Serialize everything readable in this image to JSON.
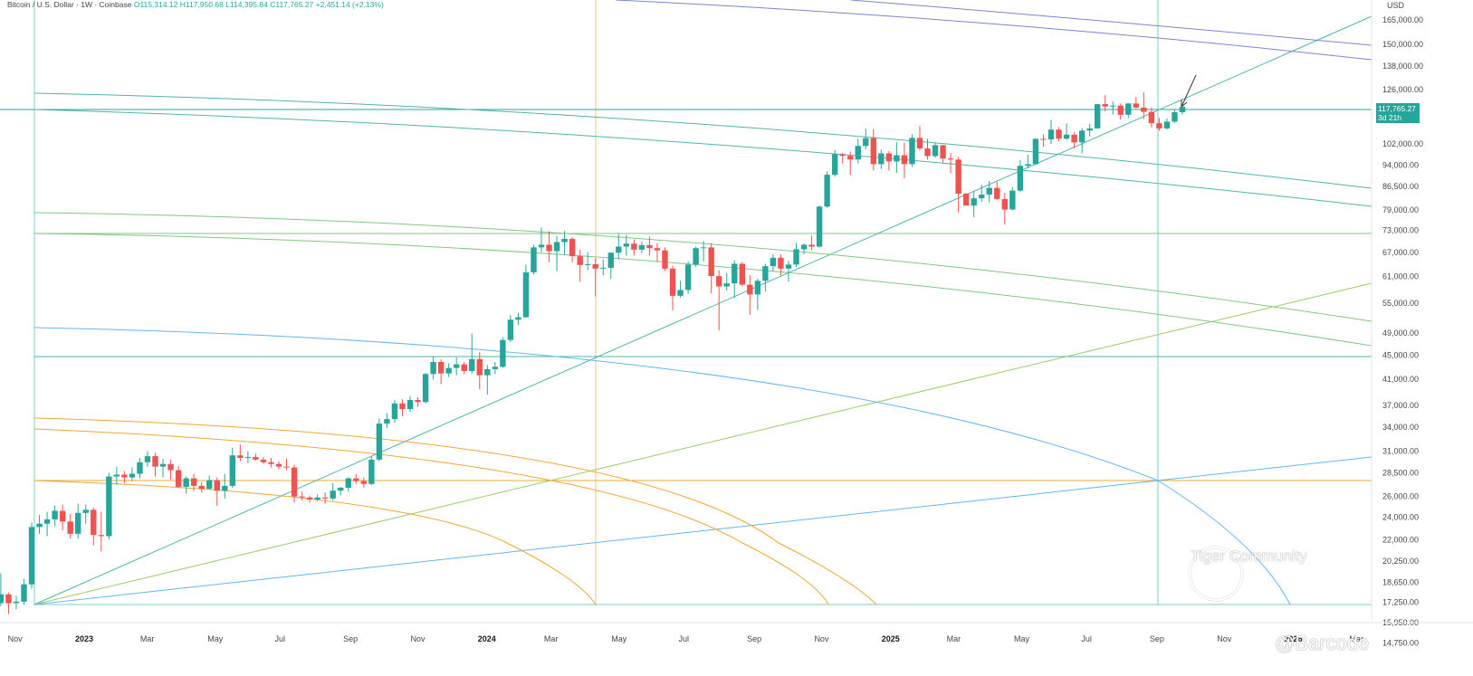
{
  "header": {
    "symbol": "Bitcoin / U.S. Dollar · 1W · Coinbase",
    "open": "O115,314.12",
    "high": "H117,950.68",
    "low": "L114,395.84",
    "close": "C117,765.27",
    "change": "+2,451.14 (+2.13%)"
  },
  "price_tag": {
    "price": "117,765.27",
    "countdown": "3d 21h"
  },
  "watermark": {
    "community": "Tiger Community",
    "handle": "@Barcode"
  },
  "chart_data": {
    "type": "candlestick",
    "currency": "USD",
    "y_scale": "log",
    "y_ticks": [
      {
        "label": "165,000.00",
        "value": 165000
      },
      {
        "label": "150,000.00",
        "value": 150000
      },
      {
        "label": "138,000.00",
        "value": 138000
      },
      {
        "label": "126,000.00",
        "value": 126000
      },
      {
        "label": "102,000.00",
        "value": 102000
      },
      {
        "label": "94,000.00",
        "value": 94000
      },
      {
        "label": "86,500.00",
        "value": 86500
      },
      {
        "label": "79,000.00",
        "value": 79000
      },
      {
        "label": "73,000.00",
        "value": 73000
      },
      {
        "label": "67,000.00",
        "value": 67000
      },
      {
        "label": "61,000.00",
        "value": 61000
      },
      {
        "label": "55,000.00",
        "value": 55000
      },
      {
        "label": "49,000.00",
        "value": 49000
      },
      {
        "label": "45,000.00",
        "value": 45000
      },
      {
        "label": "41,000.00",
        "value": 41000
      },
      {
        "label": "37,000.00",
        "value": 37000
      },
      {
        "label": "34,000.00",
        "value": 34000
      },
      {
        "label": "31,000.00",
        "value": 31000
      },
      {
        "label": "28,500.00",
        "value": 28500
      },
      {
        "label": "26,000.00",
        "value": 26000
      },
      {
        "label": "24,000.00",
        "value": 24000
      },
      {
        "label": "22,000.00",
        "value": 22000
      },
      {
        "label": "20,250.00",
        "value": 20250
      },
      {
        "label": "18,650.00",
        "value": 18650
      },
      {
        "label": "17,250.00",
        "value": 17250
      },
      {
        "label": "15,950.00",
        "value": 15950
      },
      {
        "label": "14,750.00",
        "value": 14750
      }
    ],
    "x_ticks": [
      {
        "label": "Nov",
        "date": "2022-11-01",
        "bold": false
      },
      {
        "label": "2023",
        "date": "2023-01-01",
        "bold": true
      },
      {
        "label": "Mar",
        "date": "2023-03-01",
        "bold": false
      },
      {
        "label": "May",
        "date": "2023-05-01",
        "bold": false
      },
      {
        "label": "Jul",
        "date": "2023-07-01",
        "bold": false
      },
      {
        "label": "Sep",
        "date": "2023-09-01",
        "bold": false
      },
      {
        "label": "Nov",
        "date": "2023-11-01",
        "bold": false
      },
      {
        "label": "2024",
        "date": "2024-01-01",
        "bold": true
      },
      {
        "label": "Mar",
        "date": "2024-03-01",
        "bold": false
      },
      {
        "label": "May",
        "date": "2024-05-01",
        "bold": false
      },
      {
        "label": "Jul",
        "date": "2024-07-01",
        "bold": false
      },
      {
        "label": "Sep",
        "date": "2024-09-01",
        "bold": false
      },
      {
        "label": "Nov",
        "date": "2024-11-01",
        "bold": false
      },
      {
        "label": "2025",
        "date": "2025-01-01",
        "bold": true
      },
      {
        "label": "Mar",
        "date": "2025-03-01",
        "bold": false
      },
      {
        "label": "May",
        "date": "2025-05-01",
        "bold": false
      },
      {
        "label": "Jul",
        "date": "2025-07-01",
        "bold": false
      },
      {
        "label": "Sep",
        "date": "2025-09-01",
        "bold": false
      },
      {
        "label": "Nov",
        "date": "2025-11-01",
        "bold": false
      },
      {
        "label": "2026",
        "date": "2026-01-01",
        "bold": true
      },
      {
        "label": "Mar",
        "date": "2026-03-01",
        "bold": false
      }
    ],
    "candles": [
      [
        20800,
        21500,
        16000,
        17100
      ],
      [
        17100,
        17400,
        15600,
        16400
      ],
      [
        16400,
        17300,
        15700,
        16900
      ],
      [
        16900,
        17500,
        16300,
        17050
      ],
      [
        17050,
        18100,
        16800,
        17800
      ],
      [
        17800,
        18300,
        17000,
        17500
      ],
      [
        17500,
        18000,
        16800,
        17200
      ],
      [
        17200,
        17500,
        16600,
        16900
      ],
      [
        16900,
        17500,
        16500,
        17200
      ],
      [
        17200,
        19300,
        17000,
        17800
      ],
      [
        17800,
        17900,
        16500,
        17200
      ],
      [
        17200,
        17700,
        16800,
        17300
      ],
      [
        17300,
        18900,
        17100,
        18500
      ],
      [
        18500,
        23500,
        18200,
        23100
      ],
      [
        23100,
        24200,
        22500,
        23400
      ],
      [
        23400,
        24500,
        22300,
        23800
      ],
      [
        23800,
        25100,
        23200,
        24600
      ],
      [
        24600,
        25200,
        22800,
        23600
      ],
      [
        23600,
        24300,
        22100,
        22500
      ],
      [
        22500,
        25300,
        22100,
        24400
      ],
      [
        24400,
        25200,
        23400,
        24700
      ],
      [
        24700,
        24900,
        21500,
        22400
      ],
      [
        22400,
        24500,
        21000,
        22300
      ],
      [
        22300,
        28500,
        22000,
        28100
      ],
      [
        28100,
        29200,
        27200,
        28300
      ],
      [
        28300,
        28700,
        27400,
        28000
      ],
      [
        28000,
        29100,
        27600,
        28400
      ],
      [
        28400,
        30200,
        27900,
        29700
      ],
      [
        29700,
        31000,
        29200,
        30400
      ],
      [
        30400,
        30800,
        28100,
        29200
      ],
      [
        29200,
        30100,
        28000,
        29500
      ],
      [
        29500,
        30000,
        27800,
        28800
      ],
      [
        28800,
        29300,
        26900,
        27000
      ],
      [
        27000,
        28100,
        26300,
        27900
      ],
      [
        27900,
        28400,
        26600,
        27100
      ],
      [
        27100,
        27500,
        26400,
        26800
      ],
      [
        26800,
        28200,
        26700,
        27700
      ],
      [
        27700,
        28000,
        25100,
        26600
      ],
      [
        26600,
        28400,
        25800,
        27100
      ],
      [
        27100,
        31400,
        26900,
        30500
      ],
      [
        30500,
        31800,
        29800,
        30200
      ],
      [
        30200,
        31000,
        29600,
        30300
      ],
      [
        30300,
        30700,
        29900,
        30000
      ],
      [
        30000,
        30300,
        29500,
        29700
      ],
      [
        29700,
        30200,
        29100,
        29500
      ],
      [
        29500,
        29800,
        28900,
        29200
      ],
      [
        29200,
        30100,
        28800,
        29100
      ],
      [
        29100,
        29400,
        25400,
        26000
      ],
      [
        26000,
        26500,
        25600,
        25900
      ],
      [
        25900,
        26100,
        25400,
        25700
      ],
      [
        25700,
        26200,
        25500,
        25900
      ],
      [
        25900,
        26400,
        25300,
        25800
      ],
      [
        25800,
        27400,
        25600,
        26600
      ],
      [
        26600,
        27000,
        26100,
        26900
      ],
      [
        26900,
        28000,
        26500,
        27900
      ],
      [
        27900,
        28400,
        27300,
        27600
      ],
      [
        27600,
        28000,
        26900,
        27300
      ],
      [
        27300,
        30400,
        27200,
        30000
      ],
      [
        30000,
        35200,
        29800,
        34500
      ],
      [
        34500,
        35900,
        33900,
        35100
      ],
      [
        35100,
        37800,
        34600,
        37300
      ],
      [
        37300,
        37900,
        35500,
        36500
      ],
      [
        36500,
        38400,
        36100,
        37800
      ],
      [
        37800,
        38200,
        36800,
        37500
      ],
      [
        37500,
        42000,
        37300,
        41800
      ],
      [
        41800,
        44800,
        40900,
        43800
      ],
      [
        43800,
        44300,
        40200,
        41900
      ],
      [
        41900,
        43600,
        41300,
        42800
      ],
      [
        42800,
        44600,
        41600,
        43400
      ],
      [
        43400,
        43800,
        41800,
        42300
      ],
      [
        42300,
        48900,
        41900,
        44300
      ],
      [
        44300,
        45500,
        39400,
        41600
      ],
      [
        41600,
        43300,
        38600,
        42600
      ],
      [
        42600,
        43800,
        41800,
        43000
      ],
      [
        43000,
        48200,
        42800,
        47700
      ],
      [
        47700,
        52500,
        47300,
        51600
      ],
      [
        51600,
        53000,
        50600,
        52100
      ],
      [
        52100,
        63900,
        52000,
        62000
      ],
      [
        62000,
        69000,
        61500,
        68300
      ],
      [
        68300,
        73800,
        67000,
        69000
      ],
      [
        69000,
        72700,
        64500,
        67300
      ],
      [
        67300,
        71300,
        62300,
        69700
      ],
      [
        69700,
        72800,
        66300,
        70600
      ],
      [
        70600,
        71000,
        64500,
        66000
      ],
      [
        66000,
        67700,
        59800,
        63800
      ],
      [
        63800,
        67000,
        62500,
        64000
      ],
      [
        64000,
        65500,
        56500,
        62900
      ],
      [
        62900,
        65200,
        61300,
        63100
      ],
      [
        63100,
        67000,
        60500,
        66900
      ],
      [
        66900,
        71900,
        65200,
        68500
      ],
      [
        68500,
        71700,
        66100,
        69300
      ],
      [
        69300,
        70400,
        66200,
        67700
      ],
      [
        67700,
        69800,
        66800,
        68900
      ],
      [
        68900,
        71200,
        66200,
        68100
      ],
      [
        68100,
        69400,
        64500,
        67500
      ],
      [
        67500,
        68300,
        62300,
        62900
      ],
      [
        62900,
        63600,
        53500,
        56600
      ],
      [
        56600,
        60000,
        56200,
        57900
      ],
      [
        57900,
        64700,
        57100,
        63900
      ],
      [
        63900,
        68500,
        63300,
        68100
      ],
      [
        68100,
        70000,
        64700,
        68300
      ],
      [
        68300,
        69400,
        57100,
        61100
      ],
      [
        61100,
        62500,
        49500,
        58700
      ],
      [
        58700,
        61800,
        57800,
        59400
      ],
      [
        59400,
        65000,
        56200,
        64100
      ],
      [
        64100,
        64500,
        58700,
        59100
      ],
      [
        59100,
        61300,
        52600,
        56900
      ],
      [
        56900,
        60500,
        53600,
        60000
      ],
      [
        60000,
        64100,
        57500,
        63500
      ],
      [
        63500,
        66500,
        62300,
        65600
      ],
      [
        65600,
        66500,
        61300,
        62900
      ],
      [
        62900,
        64800,
        59800,
        63900
      ],
      [
        63900,
        69500,
        63300,
        67800
      ],
      [
        67800,
        69300,
        66500,
        69000
      ],
      [
        69000,
        71500,
        67500,
        68500
      ],
      [
        68500,
        80300,
        68200,
        80000
      ],
      [
        80000,
        91800,
        79600,
        90500
      ],
      [
        90500,
        99600,
        89900,
        98000
      ],
      [
        98000,
        98400,
        94500,
        97400
      ],
      [
        97400,
        99000,
        90500,
        96000
      ],
      [
        96000,
        104000,
        94500,
        101200
      ],
      [
        101200,
        108200,
        99900,
        104300
      ],
      [
        104300,
        108000,
        92000,
        94300
      ],
      [
        94300,
        99800,
        92500,
        98300
      ],
      [
        98300,
        99200,
        92000,
        95300
      ],
      [
        95300,
        102700,
        91200,
        97600
      ],
      [
        97600,
        102500,
        89300,
        94300
      ],
      [
        94300,
        105900,
        93300,
        104400
      ],
      [
        104400,
        109400,
        99500,
        100200
      ],
      [
        100200,
        104000,
        96000,
        97300
      ],
      [
        97300,
        102400,
        96700,
        101500
      ],
      [
        101500,
        101700,
        94800,
        96400
      ],
      [
        96400,
        98500,
        91100,
        96000
      ],
      [
        96000,
        97000,
        78200,
        84100
      ],
      [
        84100,
        84300,
        81000,
        80300
      ],
      [
        80300,
        85000,
        76700,
        82600
      ],
      [
        82600,
        87000,
        81500,
        83800
      ],
      [
        83800,
        88400,
        81300,
        86000
      ],
      [
        86000,
        88000,
        82000,
        82400
      ],
      [
        82400,
        84400,
        74600,
        79100
      ],
      [
        79100,
        86200,
        78900,
        85100
      ],
      [
        85100,
        95700,
        84600,
        93700
      ],
      [
        93700,
        97800,
        92800,
        94300
      ],
      [
        94300,
        104200,
        94100,
        104000
      ],
      [
        104000,
        105700,
        100800,
        103800
      ],
      [
        103800,
        111900,
        102000,
        107800
      ],
      [
        107800,
        108900,
        103100,
        104100
      ],
      [
        104100,
        110400,
        103400,
        105700
      ],
      [
        105700,
        106800,
        100300,
        102600
      ],
      [
        102600,
        108500,
        98300,
        107400
      ],
      [
        107400,
        110200,
        105000,
        108300
      ],
      [
        108300,
        118800,
        108200,
        119000
      ],
      [
        119000,
        123200,
        115700,
        117900
      ],
      [
        117900,
        120200,
        114300,
        118300
      ],
      [
        118300,
        119300,
        112000,
        114200
      ],
      [
        114200,
        119400,
        112700,
        119300
      ],
      [
        119300,
        122300,
        117000,
        117400
      ],
      [
        117400,
        124500,
        112400,
        115500
      ],
      [
        115500,
        117500,
        108700,
        110500
      ],
      [
        110500,
        112700,
        107300,
        108300
      ],
      [
        108300,
        112500,
        107800,
        111200
      ],
      [
        111200,
        116400,
        110600,
        115300
      ],
      [
        115300,
        117950,
        114400,
        117765
      ]
    ],
    "last_price": 117765.27,
    "annotations": [
      "arrow pointing at last candle"
    ]
  },
  "drawings": {
    "colors": {
      "up": "#26a69a",
      "down": "#ef5350",
      "teal": "#4db6ac",
      "green": "#81c784",
      "olive": "#9ccc65",
      "orange": "#f0a830",
      "blue": "#64b5f6",
      "navy": "#7986cb",
      "cyan": "#80cbc4"
    }
  }
}
